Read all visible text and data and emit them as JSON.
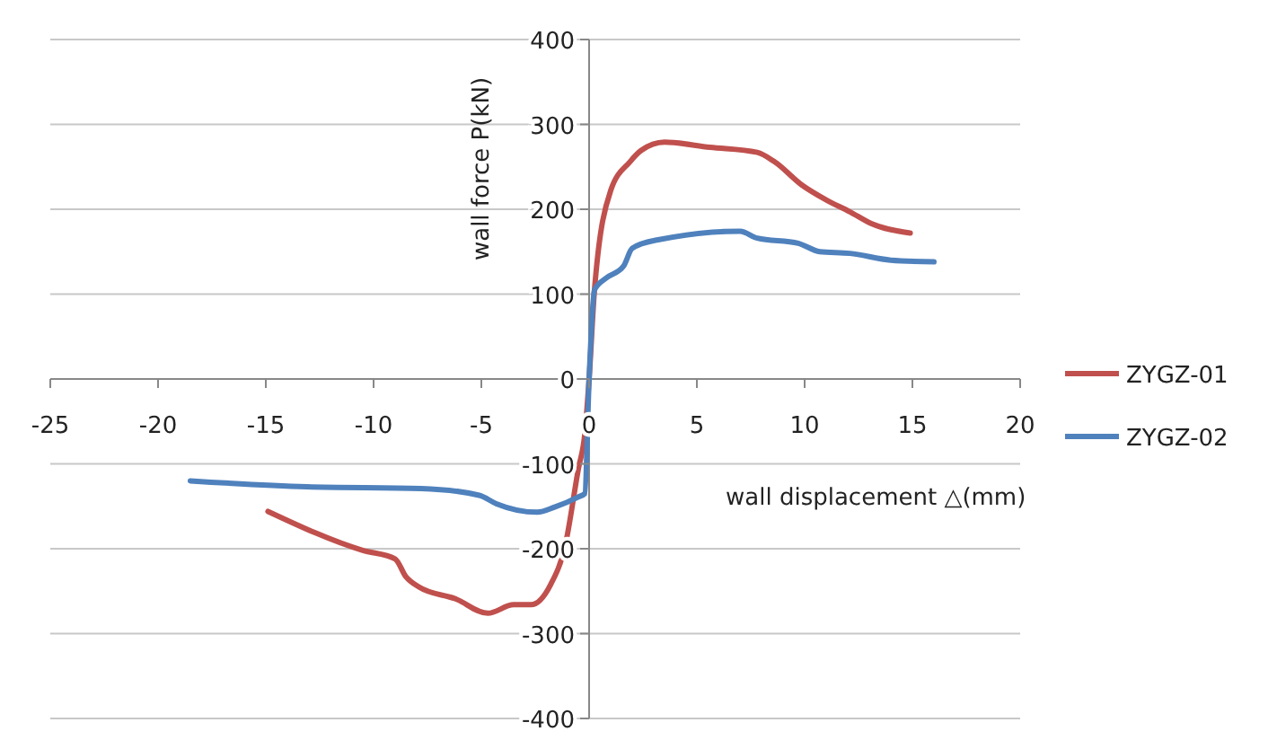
{
  "chart_data": {
    "type": "line",
    "xlabel": "wall displacement  △(mm)",
    "ylabel": "wall force P(kN)",
    "xlim": [
      -25,
      20
    ],
    "xticks": [
      -25,
      -20,
      -15,
      -10,
      -5,
      0,
      5,
      10,
      15,
      20
    ],
    "ylim": [
      -400,
      400
    ],
    "yticks": [
      -400,
      -300,
      -200,
      -100,
      0,
      100,
      200,
      300,
      400
    ],
    "grid": "y",
    "legend": "right",
    "marker": "none",
    "line_style": "solid",
    "series": [
      {
        "name": "ZYGZ-01",
        "color": "#c0504d",
        "x": [
          -14.9,
          -10.5,
          -9,
          -8.5,
          -7.9,
          -6.2,
          -4.7,
          -3.5,
          -2.7,
          -1.8,
          -1.1,
          -0.5,
          -0.2,
          0,
          0.25,
          1,
          1.9,
          2.4,
          3.5,
          5.6,
          7.8,
          8.6,
          9.9,
          11,
          12.1,
          13.1,
          14.9
        ],
        "values": [
          -156,
          -202,
          -212,
          -233,
          -245,
          -259,
          -276,
          -266,
          -266,
          -243,
          -195,
          -106,
          -65,
          0,
          105,
          222,
          256,
          269,
          279,
          273,
          267,
          256,
          228,
          211,
          197,
          183,
          172
        ]
      },
      {
        "name": "ZYGZ-02",
        "color": "#4f81bd",
        "x": [
          -18.5,
          -13.1,
          -7.8,
          -5.1,
          -4.3,
          -2.4,
          -1.6,
          -0.5,
          -0.2,
          0,
          0.25,
          0.8,
          1.6,
          2,
          3.2,
          7,
          7.8,
          9.7,
          10.7,
          12.1,
          14,
          16
        ],
        "values": [
          -120,
          -127,
          -129,
          -137,
          -147,
          -157,
          -151,
          -139,
          -135,
          0,
          105,
          119,
          133,
          154,
          164,
          174,
          166,
          160,
          150,
          148,
          140,
          138
        ]
      }
    ]
  }
}
